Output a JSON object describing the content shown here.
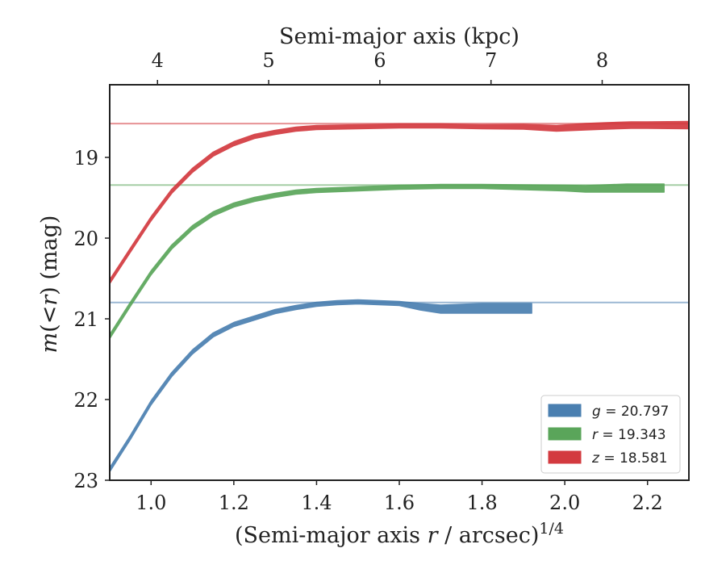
{
  "chart_data": {
    "type": "line",
    "top_axis": {
      "label": "Semi-major axis (kpc)",
      "ticks": [
        4,
        5,
        6,
        7,
        8
      ]
    },
    "x_axis": {
      "label_main": "(Semi-major axis ",
      "label_var": "r",
      "label_rest": " / arcsec)",
      "label_sup": "1/4",
      "lim": [
        0.9,
        2.3
      ],
      "ticks": [
        "1.0",
        "1.2",
        "1.4",
        "1.6",
        "1.8",
        "2.0",
        "2.2"
      ]
    },
    "y_axis": {
      "label_var": "m",
      "label_paren_open": "(",
      "label_lt": "<",
      "label_var_r": "r",
      "label_rest": ") (mag)",
      "lim": [
        23.0,
        18.1
      ],
      "inverted": true,
      "ticks": [
        19,
        20,
        21,
        22,
        23
      ]
    },
    "legend_position": "lower-right",
    "series": [
      {
        "name": "g = 20.797",
        "band": "g",
        "value": "20.797",
        "color": "#4a7fb0",
        "total": 20.797,
        "x": [
          0.9,
          0.95,
          1.0,
          1.05,
          1.1,
          1.15,
          1.2,
          1.25,
          1.3,
          1.35,
          1.4,
          1.45,
          1.5,
          1.55,
          1.6,
          1.65,
          1.7,
          1.8,
          1.92
        ],
        "y": [
          22.87,
          22.47,
          22.04,
          21.69,
          21.41,
          21.2,
          21.07,
          20.99,
          20.91,
          20.86,
          20.82,
          20.8,
          20.79,
          20.8,
          20.81,
          20.85,
          20.88,
          20.87,
          20.87
        ],
        "width": [
          0.05,
          0.05,
          0.05,
          0.05,
          0.05,
          0.05,
          0.05,
          0.05,
          0.05,
          0.05,
          0.05,
          0.05,
          0.05,
          0.05,
          0.05,
          0.08,
          0.1,
          0.12,
          0.12
        ]
      },
      {
        "name": "r = 19.343",
        "band": "r",
        "value": "19.343",
        "color": "#5aa55a",
        "total": 19.343,
        "x": [
          0.9,
          0.95,
          1.0,
          1.05,
          1.1,
          1.15,
          1.2,
          1.25,
          1.3,
          1.35,
          1.4,
          1.5,
          1.6,
          1.7,
          1.8,
          1.9,
          2.0,
          2.05,
          2.15,
          2.24
        ],
        "y": [
          21.22,
          20.82,
          20.43,
          20.11,
          19.87,
          19.7,
          19.59,
          19.52,
          19.47,
          19.43,
          19.41,
          19.39,
          19.37,
          19.36,
          19.36,
          19.37,
          19.38,
          19.39,
          19.38,
          19.38
        ],
        "width": [
          0.05,
          0.05,
          0.05,
          0.05,
          0.05,
          0.05,
          0.05,
          0.05,
          0.05,
          0.05,
          0.05,
          0.05,
          0.05,
          0.05,
          0.05,
          0.06,
          0.07,
          0.08,
          0.1,
          0.1
        ]
      },
      {
        "name": "z = 18.581",
        "band": "z",
        "value": "18.581",
        "color": "#d33a3f",
        "total": 18.581,
        "x": [
          0.9,
          0.95,
          1.0,
          1.05,
          1.1,
          1.15,
          1.2,
          1.25,
          1.3,
          1.35,
          1.4,
          1.5,
          1.6,
          1.7,
          1.8,
          1.9,
          1.98,
          2.05,
          2.1,
          2.16,
          2.2,
          2.3
        ],
        "y": [
          20.54,
          20.15,
          19.76,
          19.42,
          19.16,
          18.96,
          18.83,
          18.74,
          18.69,
          18.65,
          18.63,
          18.62,
          18.61,
          18.61,
          18.62,
          18.62,
          18.64,
          18.62,
          18.61,
          18.6,
          18.6,
          18.6
        ],
        "width": [
          0.05,
          0.05,
          0.05,
          0.05,
          0.05,
          0.05,
          0.05,
          0.05,
          0.05,
          0.05,
          0.05,
          0.05,
          0.05,
          0.05,
          0.05,
          0.06,
          0.07,
          0.08,
          0.08,
          0.08,
          0.08,
          0.09
        ]
      }
    ]
  }
}
